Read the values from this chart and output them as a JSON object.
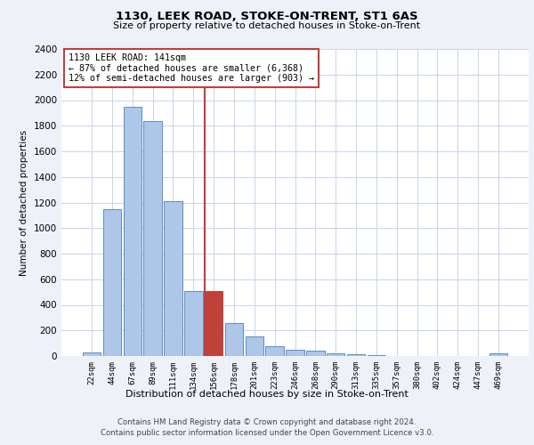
{
  "title1": "1130, LEEK ROAD, STOKE-ON-TRENT, ST1 6AS",
  "title2": "Size of property relative to detached houses in Stoke-on-Trent",
  "xlabel": "Distribution of detached houses by size in Stoke-on-Trent",
  "ylabel": "Number of detached properties",
  "categories": [
    "22sqm",
    "44sqm",
    "67sqm",
    "89sqm",
    "111sqm",
    "134sqm",
    "156sqm",
    "178sqm",
    "201sqm",
    "223sqm",
    "246sqm",
    "268sqm",
    "290sqm",
    "313sqm",
    "335sqm",
    "357sqm",
    "380sqm",
    "402sqm",
    "424sqm",
    "447sqm",
    "469sqm"
  ],
  "values": [
    30,
    1150,
    1950,
    1840,
    1210,
    510,
    510,
    260,
    155,
    80,
    50,
    45,
    20,
    15,
    8,
    0,
    0,
    0,
    0,
    0,
    20
  ],
  "bar_color": "#aec6e8",
  "bar_edge_color": "#5b8dc8",
  "highlight_bar_index": 6,
  "highlight_bar_color": "#c0403a",
  "highlight_bar_edge_color": "#c0403a",
  "vline_x": 5.57,
  "vline_color": "#c0403a",
  "annotation_text": "1130 LEEK ROAD: 141sqm\n← 87% of detached houses are smaller (6,368)\n12% of semi-detached houses are larger (903) →",
  "annotation_box_color": "#c0403a",
  "ylim": [
    0,
    2400
  ],
  "yticks": [
    0,
    200,
    400,
    600,
    800,
    1000,
    1200,
    1400,
    1600,
    1800,
    2000,
    2200,
    2400
  ],
  "footer1": "Contains HM Land Registry data © Crown copyright and database right 2024.",
  "footer2": "Contains public sector information licensed under the Open Government Licence v3.0.",
  "bg_color": "#eef2f8",
  "plot_bg_color": "#ffffff",
  "grid_color": "#c8d4e8"
}
